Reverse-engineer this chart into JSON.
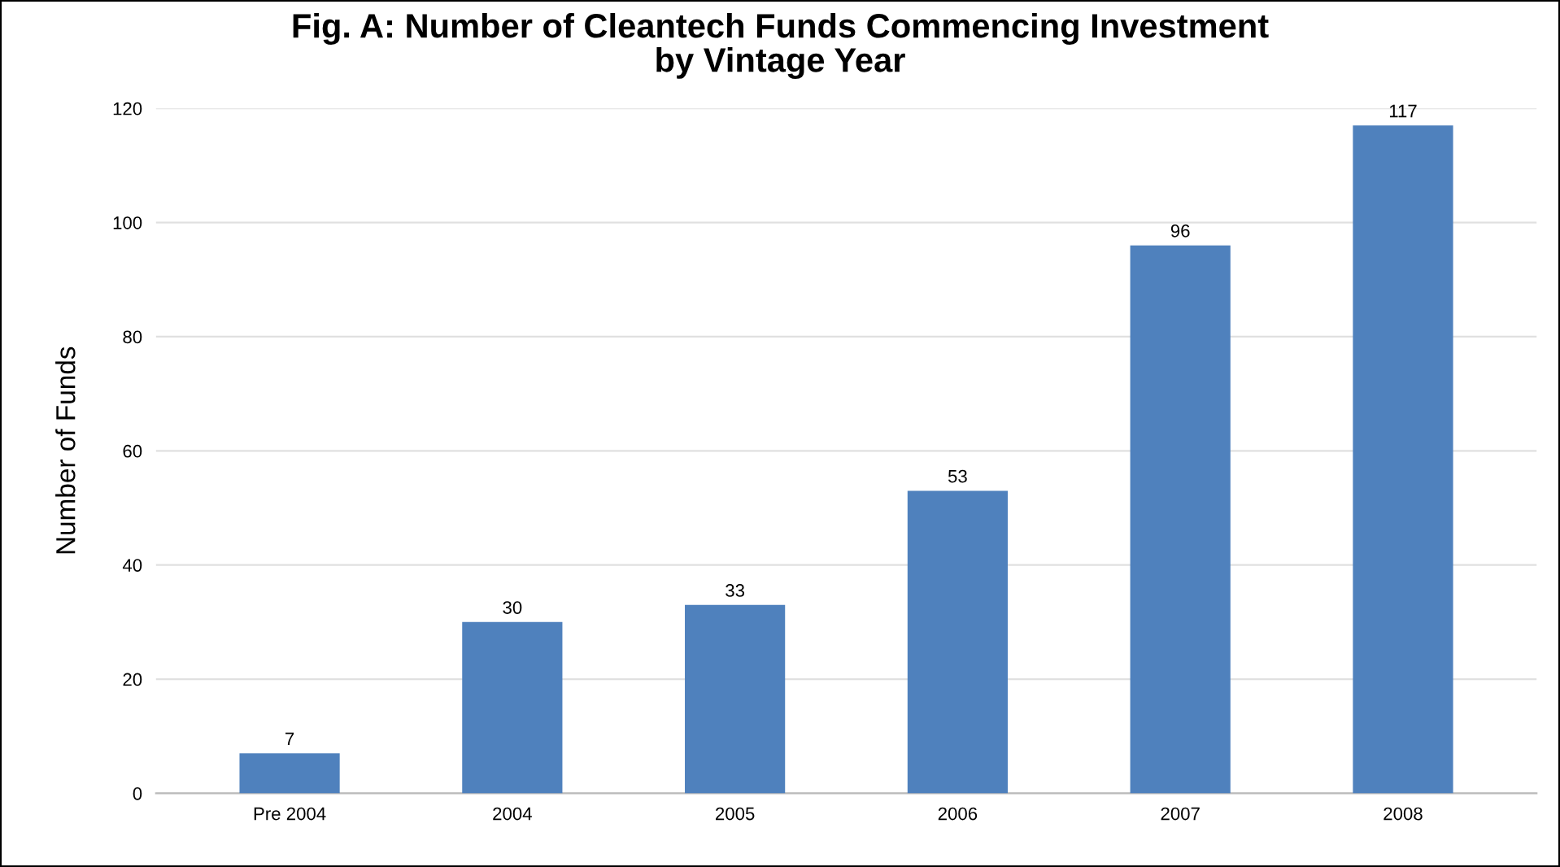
{
  "chart_data": {
    "type": "bar",
    "title": "Fig. A: Number of Cleantech Funds Commencing Investment\nby Vintage Year",
    "ylabel": "Number of Funds",
    "categories": [
      "Pre 2004",
      "2004",
      "2005",
      "2006",
      "2007",
      "2008"
    ],
    "values": [
      7,
      30,
      33,
      53,
      96,
      117
    ],
    "color": "#4f81bd",
    "ylim": [
      0,
      120
    ],
    "yticks": [
      0,
      20,
      40,
      60,
      80,
      100,
      120
    ],
    "grid": "y",
    "data_labels": true
  }
}
